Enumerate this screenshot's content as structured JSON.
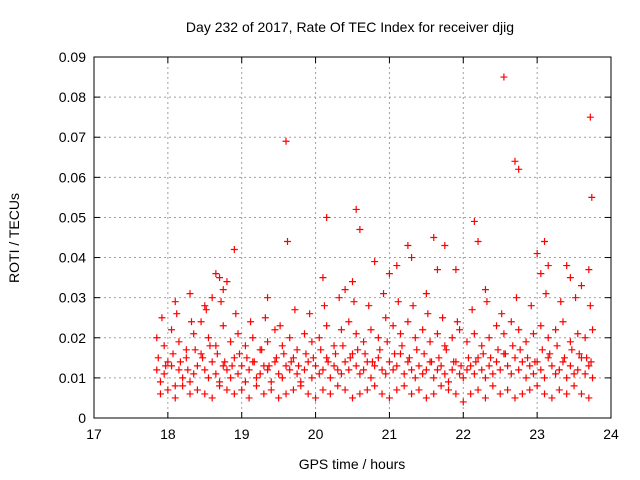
{
  "chart_data": {
    "type": "scatter",
    "title": "Day 232 of 2017, Rate Of TEC Index for receiver djig",
    "xlabel": "GPS time / hours",
    "ylabel": "ROTI / TECUs",
    "xlim": [
      17,
      24
    ],
    "ylim": [
      0,
      0.09
    ],
    "xticks": [
      17,
      18,
      19,
      20,
      21,
      22,
      23,
      24
    ],
    "xtick_labels": [
      "17",
      "18",
      "19",
      "20",
      "21",
      "22",
      "23",
      "24"
    ],
    "yticks": [
      0,
      0.01,
      0.02,
      0.03,
      0.04,
      0.05,
      0.06,
      0.07,
      0.08,
      0.09
    ],
    "ytick_labels": [
      "0",
      "0.01",
      "0.02",
      "0.03",
      "0.04",
      "0.05",
      "0.06",
      "0.07",
      "0.08",
      "0.09"
    ],
    "grid": true,
    "marker": "+",
    "series": [
      {
        "name": "ROTI",
        "color": "#ff0000",
        "x": [
          17.85,
          17.9,
          17.95,
          18.0,
          18.05,
          18.1,
          18.15,
          18.2,
          18.25,
          18.3,
          18.35,
          18.4,
          18.45,
          18.5,
          18.55,
          18.6,
          18.65,
          18.7,
          18.75,
          18.8,
          18.85,
          18.9,
          18.95,
          19.0,
          19.05,
          19.1,
          19.15,
          19.2,
          19.25,
          19.3,
          19.35,
          19.4,
          19.45,
          19.5,
          19.55,
          19.6,
          19.65,
          19.7,
          19.75,
          19.8,
          19.85,
          19.9,
          19.95,
          20.0,
          20.05,
          20.1,
          20.15,
          20.2,
          20.25,
          20.3,
          20.35,
          20.4,
          20.45,
          20.5,
          20.55,
          20.6,
          20.65,
          20.7,
          20.75,
          20.8,
          20.85,
          20.9,
          20.95,
          21.0,
          21.05,
          21.1,
          21.15,
          21.2,
          21.25,
          21.3,
          21.35,
          21.4,
          21.45,
          21.5,
          21.55,
          21.6,
          21.65,
          21.7,
          21.75,
          21.8,
          21.85,
          21.9,
          21.95,
          22.0,
          22.05,
          22.1,
          22.15,
          22.2,
          22.25,
          22.3,
          22.35,
          22.4,
          22.45,
          22.5,
          22.55,
          22.6,
          22.65,
          22.7,
          22.75,
          22.8,
          22.85,
          22.9,
          22.95,
          23.0,
          23.05,
          23.1,
          23.15,
          23.2,
          23.25,
          23.3,
          23.35,
          23.4,
          23.45,
          23.5,
          23.55,
          23.6,
          23.65,
          23.7,
          23.75,
          17.85,
          17.95,
          18.05,
          18.15,
          18.25,
          18.35,
          18.45,
          18.55,
          18.65,
          18.75,
          18.85,
          18.95,
          19.05,
          19.15,
          19.25,
          19.35,
          19.45,
          19.55,
          19.65,
          19.75,
          19.85,
          19.95,
          20.05,
          20.15,
          20.25,
          20.35,
          20.45,
          20.55,
          20.65,
          20.75,
          20.85,
          20.95,
          21.05,
          21.15,
          21.25,
          21.35,
          21.45,
          21.55,
          21.65,
          21.75,
          21.85,
          21.95,
          22.05,
          22.15,
          22.25,
          22.35,
          22.45,
          22.55,
          22.65,
          22.75,
          22.85,
          22.95,
          23.05,
          23.15,
          23.25,
          23.35,
          23.45,
          23.55,
          23.65,
          23.75,
          17.9,
          18.0,
          18.1,
          18.2,
          18.3,
          18.4,
          18.5,
          18.6,
          18.7,
          18.8,
          18.9,
          19.0,
          19.1,
          19.2,
          19.3,
          19.4,
          19.5,
          19.6,
          19.7,
          19.8,
          19.9,
          20.0,
          20.1,
          20.2,
          20.3,
          20.4,
          20.5,
          20.6,
          20.7,
          20.8,
          20.9,
          21.0,
          21.1,
          21.2,
          21.3,
          21.4,
          21.5,
          21.6,
          21.7,
          21.8,
          21.9,
          22.0,
          22.1,
          22.2,
          22.3,
          22.4,
          22.5,
          22.6,
          22.7,
          22.8,
          22.9,
          23.0,
          23.1,
          23.2,
          23.3,
          23.4,
          23.5,
          23.6,
          23.7,
          17.87,
          17.97,
          18.07,
          18.17,
          18.27,
          18.37,
          18.47,
          18.57,
          18.67,
          18.77,
          18.87,
          18.97,
          19.07,
          19.17,
          19.27,
          19.37,
          19.47,
          19.57,
          19.67,
          19.77,
          19.87,
          19.97,
          20.07,
          20.17,
          20.27,
          20.37,
          20.47,
          20.57,
          20.67,
          20.77,
          20.87,
          20.97,
          21.07,
          21.17,
          21.27,
          21.37,
          21.47,
          21.57,
          21.67,
          21.77,
          21.87,
          21.97,
          22.07,
          22.17,
          22.27,
          22.37,
          22.47,
          22.57,
          22.67,
          22.77,
          22.87,
          22.97,
          23.07,
          23.17,
          23.27,
          23.37,
          23.47,
          23.57,
          23.67,
          23.73,
          17.92,
          18.12,
          18.32,
          18.52,
          18.72,
          18.92,
          19.12,
          19.32,
          19.52,
          19.72,
          19.92,
          20.12,
          20.32,
          20.52,
          20.72,
          20.92,
          21.12,
          21.32,
          21.52,
          21.72,
          21.92,
          22.12,
          22.32,
          22.52,
          22.72,
          22.92,
          23.12,
          23.32,
          23.52,
          23.72,
          18.1,
          18.3,
          18.5,
          18.6,
          18.65,
          18.7,
          18.75,
          18.8,
          18.9,
          19.35,
          19.6,
          19.62,
          20.1,
          20.15,
          20.4,
          20.5,
          20.55,
          20.6,
          20.8,
          21.0,
          21.1,
          21.25,
          21.3,
          21.5,
          21.6,
          21.65,
          21.75,
          21.9,
          22.15,
          22.2,
          22.3,
          22.55,
          22.7,
          22.75,
          23.0,
          23.05,
          23.1,
          23.15,
          23.4,
          23.45,
          23.6,
          23.7,
          23.72,
          23.74
        ],
        "y": [
          0.012,
          0.009,
          0.011,
          0.014,
          0.013,
          0.008,
          0.012,
          0.01,
          0.015,
          0.009,
          0.011,
          0.013,
          0.016,
          0.012,
          0.01,
          0.014,
          0.011,
          0.009,
          0.013,
          0.012,
          0.01,
          0.015,
          0.011,
          0.013,
          0.009,
          0.012,
          0.014,
          0.01,
          0.011,
          0.013,
          0.012,
          0.009,
          0.014,
          0.011,
          0.01,
          0.013,
          0.012,
          0.015,
          0.011,
          0.009,
          0.012,
          0.014,
          0.01,
          0.013,
          0.011,
          0.012,
          0.015,
          0.01,
          0.013,
          0.012,
          0.011,
          0.014,
          0.012,
          0.016,
          0.013,
          0.011,
          0.012,
          0.014,
          0.01,
          0.013,
          0.015,
          0.012,
          0.011,
          0.014,
          0.012,
          0.013,
          0.016,
          0.011,
          0.014,
          0.012,
          0.01,
          0.013,
          0.011,
          0.012,
          0.014,
          0.01,
          0.012,
          0.013,
          0.011,
          0.009,
          0.012,
          0.014,
          0.011,
          0.01,
          0.012,
          0.013,
          0.011,
          0.015,
          0.012,
          0.01,
          0.013,
          0.011,
          0.014,
          0.012,
          0.016,
          0.013,
          0.011,
          0.015,
          0.012,
          0.014,
          0.01,
          0.013,
          0.011,
          0.014,
          0.012,
          0.01,
          0.015,
          0.013,
          0.011,
          0.012,
          0.014,
          0.01,
          0.013,
          0.011,
          0.012,
          0.015,
          0.011,
          0.013,
          0.01,
          0.02,
          0.018,
          0.022,
          0.019,
          0.017,
          0.021,
          0.024,
          0.02,
          0.018,
          0.023,
          0.019,
          0.021,
          0.018,
          0.02,
          0.017,
          0.019,
          0.022,
          0.018,
          0.02,
          0.017,
          0.021,
          0.019,
          0.02,
          0.023,
          0.018,
          0.022,
          0.024,
          0.021,
          0.019,
          0.022,
          0.02,
          0.025,
          0.023,
          0.021,
          0.024,
          0.02,
          0.022,
          0.019,
          0.021,
          0.018,
          0.02,
          0.022,
          0.019,
          0.021,
          0.018,
          0.02,
          0.023,
          0.021,
          0.024,
          0.022,
          0.019,
          0.021,
          0.023,
          0.02,
          0.022,
          0.024,
          0.019,
          0.021,
          0.02,
          0.022,
          0.006,
          0.007,
          0.005,
          0.008,
          0.006,
          0.007,
          0.006,
          0.005,
          0.008,
          0.007,
          0.006,
          0.007,
          0.005,
          0.008,
          0.006,
          0.007,
          0.005,
          0.006,
          0.007,
          0.008,
          0.006,
          0.005,
          0.007,
          0.006,
          0.008,
          0.007,
          0.005,
          0.006,
          0.007,
          0.008,
          0.006,
          0.005,
          0.007,
          0.008,
          0.006,
          0.007,
          0.005,
          0.006,
          0.008,
          0.007,
          0.006,
          0.004,
          0.006,
          0.007,
          0.005,
          0.008,
          0.006,
          0.007,
          0.005,
          0.006,
          0.007,
          0.008,
          0.006,
          0.005,
          0.007,
          0.006,
          0.008,
          0.006,
          0.005,
          0.015,
          0.013,
          0.016,
          0.014,
          0.012,
          0.017,
          0.015,
          0.018,
          0.016,
          0.014,
          0.013,
          0.016,
          0.015,
          0.014,
          0.017,
          0.013,
          0.015,
          0.016,
          0.014,
          0.013,
          0.016,
          0.015,
          0.017,
          0.014,
          0.016,
          0.018,
          0.015,
          0.017,
          0.016,
          0.014,
          0.017,
          0.019,
          0.016,
          0.018,
          0.015,
          0.017,
          0.016,
          0.014,
          0.015,
          0.017,
          0.014,
          0.013,
          0.015,
          0.014,
          0.016,
          0.015,
          0.017,
          0.016,
          0.018,
          0.017,
          0.015,
          0.014,
          0.017,
          0.016,
          0.018,
          0.015,
          0.017,
          0.016,
          0.015,
          0.014,
          0.025,
          0.026,
          0.024,
          0.027,
          0.029,
          0.026,
          0.024,
          0.025,
          0.023,
          0.027,
          0.026,
          0.028,
          0.03,
          0.029,
          0.028,
          0.031,
          0.029,
          0.028,
          0.026,
          0.025,
          0.024,
          0.027,
          0.029,
          0.026,
          0.03,
          0.028,
          0.031,
          0.029,
          0.03,
          0.028,
          0.029,
          0.031,
          0.028,
          0.03,
          0.036,
          0.035,
          0.032,
          0.034,
          0.042,
          0.03,
          0.069,
          0.044,
          0.035,
          0.05,
          0.032,
          0.034,
          0.052,
          0.047,
          0.039,
          0.036,
          0.038,
          0.043,
          0.04,
          0.031,
          0.045,
          0.037,
          0.043,
          0.037,
          0.049,
          0.044,
          0.032,
          0.085,
          0.064,
          0.062,
          0.041,
          0.036,
          0.044,
          0.038,
          0.038,
          0.035,
          0.033,
          0.037,
          0.075,
          0.055
        ]
      }
    ]
  }
}
